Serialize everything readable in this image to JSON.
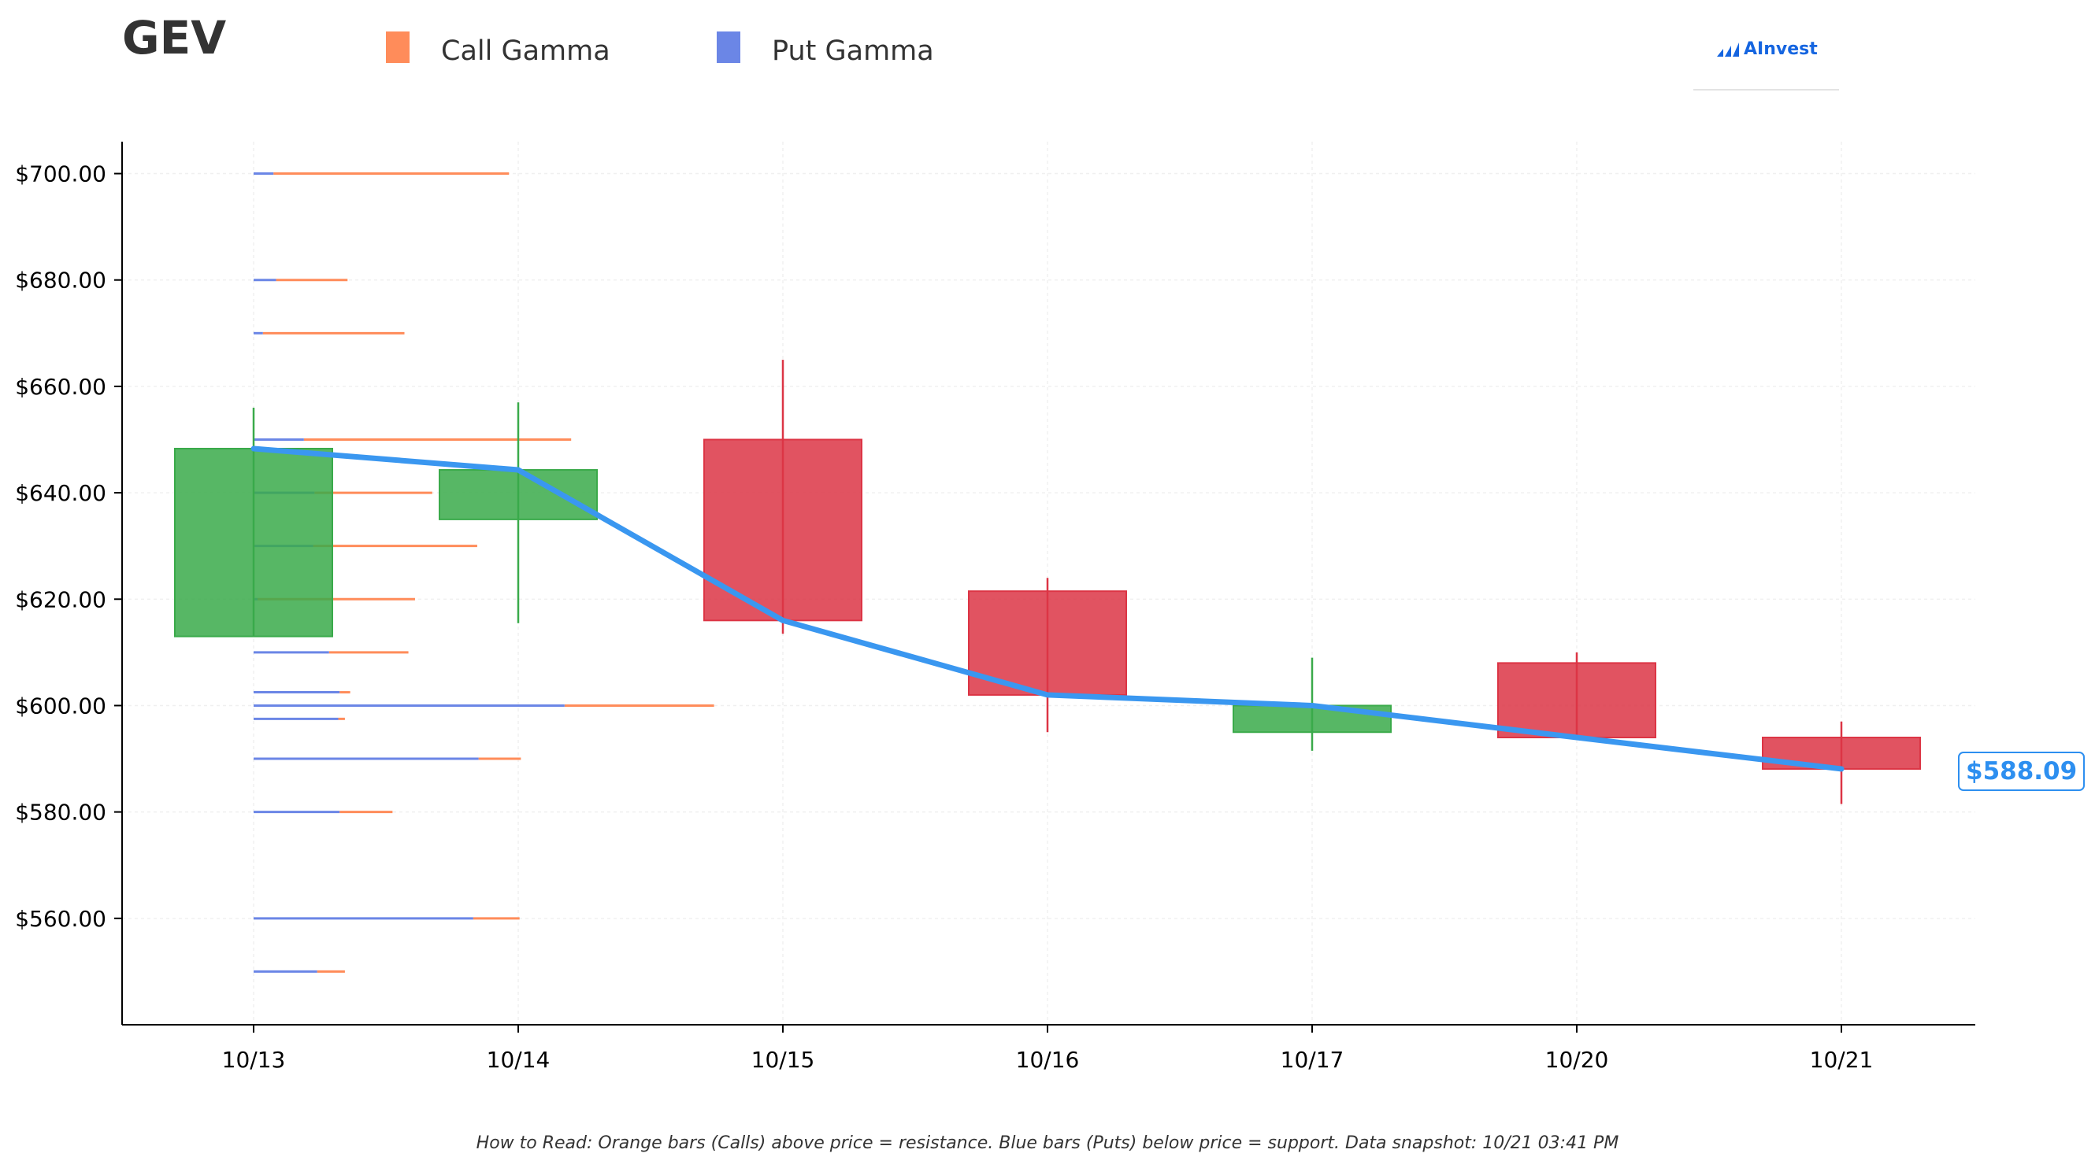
{
  "header": {
    "ticker": "GEV",
    "legend": [
      {
        "label": "Call Gamma",
        "color": "#ff8c5a"
      },
      {
        "label": "Put Gamma",
        "color": "#6b86e6"
      }
    ],
    "brand": "AInvest"
  },
  "footer_note": "How to Read: Orange bars (Calls) above price = resistance. Blue bars (Puts) below price = support. Data snapshot: 10/21 03:41 PM",
  "current_price_label": "$588.09",
  "colors": {
    "up": "#3aaa4a",
    "down": "#dc3545",
    "call": "#ff8c5a",
    "put": "#6b86e6",
    "price_line": "#3a97f0"
  },
  "chart_data": {
    "type": "candlestick",
    "title": "GEV",
    "ylim": [
      540,
      706
    ],
    "y_ticks": [
      560,
      580,
      600,
      620,
      640,
      660,
      680,
      700
    ],
    "y_tick_labels": [
      "$560.00",
      "$580.00",
      "$600.00",
      "$620.00",
      "$640.00",
      "$660.00",
      "$680.00",
      "$700.00"
    ],
    "categories": [
      "10/13",
      "10/14",
      "10/15",
      "10/16",
      "10/17",
      "10/20",
      "10/21"
    ],
    "candles": [
      {
        "date": "10/13",
        "open": 613,
        "high": 656,
        "low": 613,
        "close": 648.3
      },
      {
        "date": "10/14",
        "open": 635,
        "high": 657,
        "low": 615.5,
        "close": 644.3
      },
      {
        "date": "10/15",
        "open": 650,
        "high": 665,
        "low": 613.5,
        "close": 616
      },
      {
        "date": "10/16",
        "open": 621.5,
        "high": 624,
        "low": 595,
        "close": 602
      },
      {
        "date": "10/17",
        "open": 595,
        "high": 609,
        "low": 591.5,
        "close": 600
      },
      {
        "date": "10/20",
        "open": 608,
        "high": 610,
        "low": 594,
        "close": 594
      },
      {
        "date": "10/21",
        "open": 594,
        "high": 597,
        "low": 581.5,
        "close": 588.09
      }
    ],
    "close_line": [
      648.3,
      644.3,
      616,
      602,
      600,
      594,
      588.09
    ],
    "current_price": 588.09,
    "gamma_levels": [
      {
        "strike": 700,
        "put": 0.075,
        "call": 0.965
      },
      {
        "strike": 680,
        "put": 0.085,
        "call": 0.355
      },
      {
        "strike": 670,
        "put": 0.035,
        "call": 0.57
      },
      {
        "strike": 650,
        "put": 0.19,
        "call": 1.2
      },
      {
        "strike": 640,
        "put": 0.23,
        "call": 0.675
      },
      {
        "strike": 630,
        "put": 0.225,
        "call": 0.845
      },
      {
        "strike": 620,
        "put": 0.015,
        "call": 0.61
      },
      {
        "strike": 610,
        "put": 0.285,
        "call": 0.585
      },
      {
        "strike": 602.5,
        "put": 0.325,
        "call": 0.365
      },
      {
        "strike": 600,
        "put": 1.175,
        "call": 1.74
      },
      {
        "strike": 597.5,
        "put": 0.32,
        "call": 0.345
      },
      {
        "strike": 590,
        "put": 0.85,
        "call": 1.01
      },
      {
        "strike": 580,
        "put": 0.325,
        "call": 0.525
      },
      {
        "strike": 560,
        "put": 0.83,
        "call": 1.005
      },
      {
        "strike": 550,
        "put": 0.24,
        "call": 0.345
      }
    ],
    "grid": true,
    "legend_position": "top"
  }
}
